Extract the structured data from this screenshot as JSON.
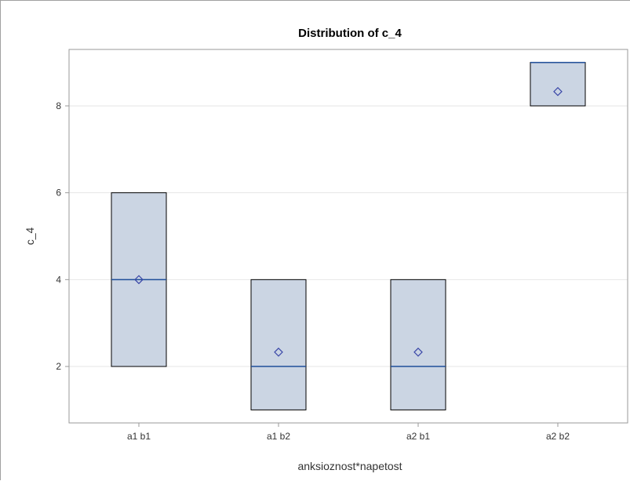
{
  "chart_data": {
    "type": "box",
    "title": "Distribution of c_4",
    "xlabel": "anksioznost*napetost",
    "ylabel": "c_4",
    "ylim": [
      0.7,
      9.3
    ],
    "yticks": [
      2,
      4,
      6,
      8
    ],
    "grid": "horizontal",
    "categories": [
      "a1 b1",
      "a1 b2",
      "a2 b1",
      "a2 b2"
    ],
    "boxes": [
      {
        "category": "a1 b1",
        "q1": 2,
        "median": 4,
        "q3": 6,
        "mean": 4
      },
      {
        "category": "a1 b2",
        "q1": 1,
        "median": 2,
        "q3": 4,
        "mean": 2.33
      },
      {
        "category": "a2 b1",
        "q1": 1,
        "median": 2,
        "q3": 4,
        "mean": 2.33
      },
      {
        "category": "a2 b2",
        "q1": 8,
        "median": 9,
        "q3": 9,
        "mean": 8.33
      }
    ],
    "colors": {
      "box_fill": "#cbd5e3",
      "box_stroke": "#000000",
      "median": "#1f4e99",
      "mean_marker": "#3b48a8",
      "grid": "#e6e6e6",
      "axis": "#9a9a9a"
    }
  }
}
